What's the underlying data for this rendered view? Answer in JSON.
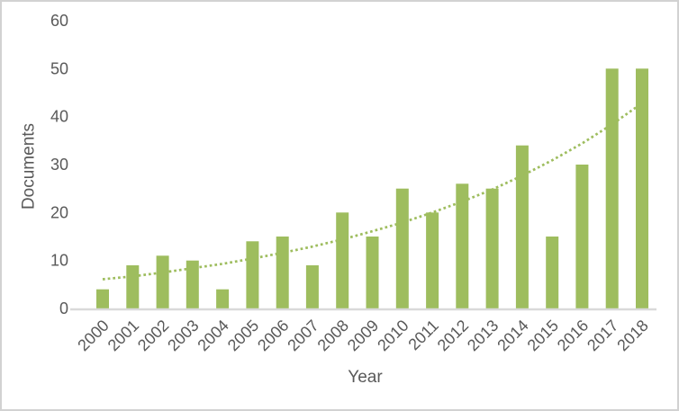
{
  "chart_data": {
    "type": "bar",
    "title": "",
    "xlabel": "Year",
    "ylabel": "Documents",
    "categories": [
      "2000",
      "2001",
      "2002",
      "2003",
      "2004",
      "2005",
      "2006",
      "2007",
      "2008",
      "2009",
      "2010",
      "2011",
      "2012",
      "2013",
      "2014",
      "2015",
      "2016",
      "2017",
      "2018"
    ],
    "values": [
      4,
      9,
      11,
      10,
      4,
      14,
      15,
      9,
      20,
      15,
      25,
      20,
      26,
      25,
      34,
      15,
      30,
      50,
      50
    ],
    "ylim": [
      0,
      60
    ],
    "yticks": [
      0,
      10,
      20,
      30,
      40,
      50,
      60
    ],
    "grid": false,
    "legend": "none",
    "trendline": {
      "type": "exponential",
      "style": "dotted",
      "values": [
        6.1,
        6.7,
        7.5,
        8.4,
        9.3,
        10.4,
        11.6,
        12.9,
        14.4,
        16.1,
        17.9,
        20.0,
        22.3,
        24.8,
        27.7,
        30.9,
        34.4,
        38.4,
        42.8
      ]
    },
    "colors": {
      "bar": "#9ebd5e",
      "trend": "#9ebd5e",
      "text": "#595959",
      "axis_line": "#d9d9d9",
      "background": "#ffffff",
      "border": "#d2d2d2"
    }
  }
}
